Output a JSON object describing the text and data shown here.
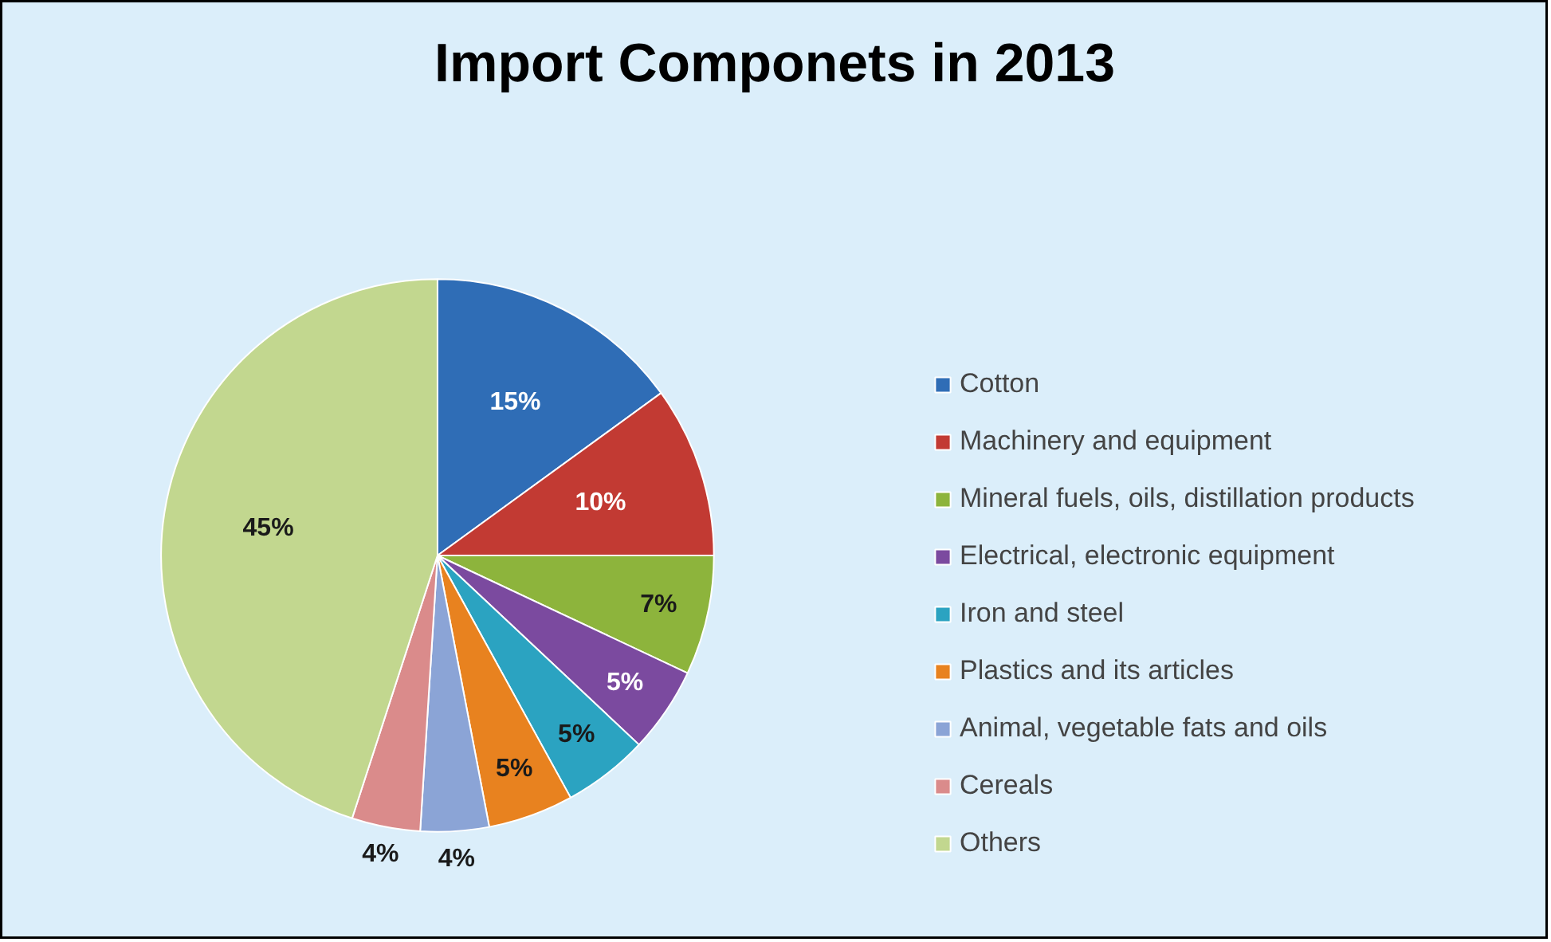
{
  "chart_data": {
    "type": "pie",
    "title": "Import Componets in 2013",
    "categories": [
      "Cotton",
      "Machinery and equipment",
      "Mineral fuels, oils, distillation products",
      "Electrical, electronic equipment",
      "Iron and steel",
      "Plastics and its articles",
      "Animal, vegetable fats and oils",
      "Cereals",
      "Others"
    ],
    "values": [
      15,
      10,
      7,
      5,
      5,
      5,
      4,
      4,
      45
    ],
    "colors": [
      "#2f6db6",
      "#c23a33",
      "#8db43c",
      "#7b4a9f",
      "#2ba3c1",
      "#e8821f",
      "#8ba4d6",
      "#da8b8b",
      "#c2d78f"
    ],
    "value_labels": [
      "15%",
      "10%",
      "7%",
      "5%",
      "5%",
      "5%",
      "4%",
      "4%",
      "45%"
    ],
    "legend": "right"
  }
}
